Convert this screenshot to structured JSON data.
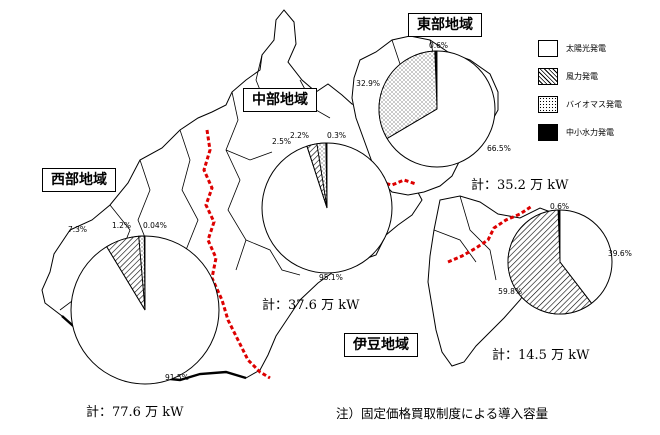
{
  "legend": [
    {
      "label": "太陽光発電",
      "pattern": "solar"
    },
    {
      "label": "風力発電",
      "pattern": "wind"
    },
    {
      "label": "バイオマス発電",
      "pattern": "biomass"
    },
    {
      "label": "中小水力発電",
      "pattern": "hydro"
    }
  ],
  "colors": {
    "solar": "#ffffff",
    "outline": "#000000",
    "hydro": "#000000",
    "prefecture_border": "#dd0000",
    "map_line": "#000000"
  },
  "regions": {
    "west": {
      "title": "西部地域",
      "total": "計：77.6 万 kW"
    },
    "central": {
      "title": "中部地域",
      "total": "計：37.6 万 kW"
    },
    "east": {
      "title": "東部地域",
      "total": "計：35.2 万 kW"
    },
    "izu": {
      "title": "伊豆地域",
      "total": "計：14.5 万 kW"
    }
  },
  "note": "注）固定価格買取制度による導入容量",
  "chart_data": [
    {
      "type": "pie",
      "region": "西部地域",
      "categories": [
        "太陽光発電",
        "風力発電",
        "バイオマス発電",
        "中小水力発電"
      ],
      "values": [
        91.5,
        7.3,
        1.2,
        0.04
      ],
      "labels": [
        "91.5%",
        "7.3%",
        "1.2%",
        "0.04%"
      ]
    },
    {
      "type": "pie",
      "region": "中部地域",
      "categories": [
        "太陽光発電",
        "風力発電",
        "バイオマス発電",
        "中小水力発電"
      ],
      "values": [
        95.1,
        2.5,
        2.2,
        0.3
      ],
      "labels": [
        "95.1%",
        "2.5%",
        "2.2%",
        "0.3%"
      ]
    },
    {
      "type": "pie",
      "region": "東部地域",
      "categories": [
        "太陽光発電",
        "バイオマス発電",
        "中小水力発電"
      ],
      "values": [
        66.5,
        32.9,
        0.6
      ],
      "labels": [
        "66.5%",
        "32.9%",
        "0.6%"
      ]
    },
    {
      "type": "pie",
      "region": "伊豆地域",
      "categories": [
        "太陽光発電",
        "風力発電",
        "中小水力発電"
      ],
      "values": [
        39.6,
        59.8,
        0.6
      ],
      "labels": [
        "39.6%",
        "59.8%",
        "0.6%"
      ]
    }
  ]
}
